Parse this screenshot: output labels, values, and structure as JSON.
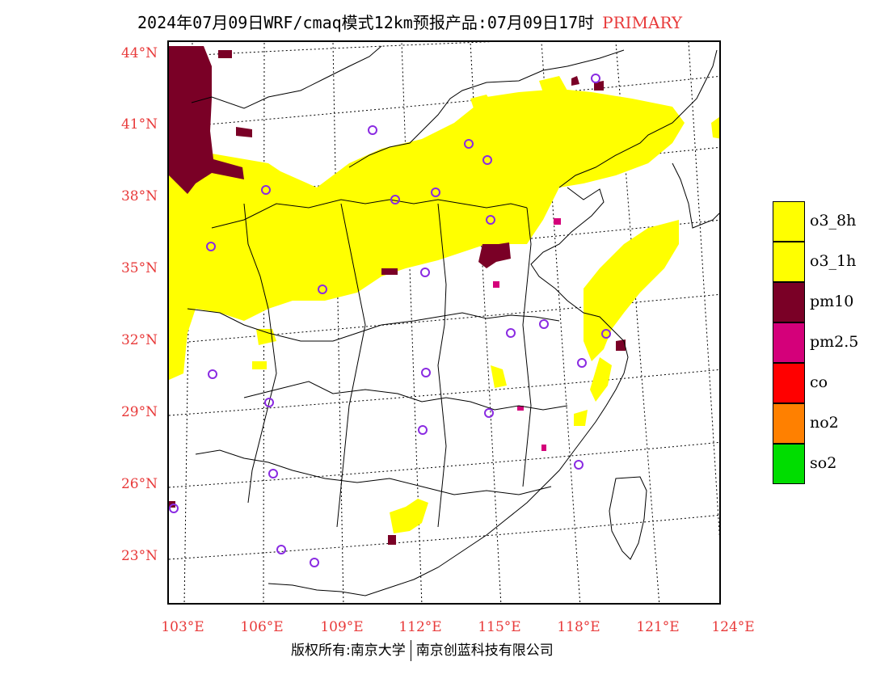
{
  "title": {
    "main": "2024年07月09日WRF/cmaq模式12km预报产品:07月09日17时",
    "tag": "PRIMARY"
  },
  "axes": {
    "lat_labels": [
      "44°N",
      "41°N",
      "38°N",
      "35°N",
      "32°N",
      "29°N",
      "26°N",
      "23°N"
    ],
    "lon_labels": [
      "103°E",
      "106°E",
      "109°E",
      "112°E",
      "115°E",
      "118°E",
      "121°E",
      "124°E"
    ]
  },
  "legend": [
    {
      "label": "o3_8h",
      "color": "#ffff00"
    },
    {
      "label": "o3_1h",
      "color": "#ffff00"
    },
    {
      "label": "pm10",
      "color": "#7a0026"
    },
    {
      "label": "pm2.5",
      "color": "#d4007a"
    },
    {
      "label": "co",
      "color": "#ff0000"
    },
    {
      "label": "no2",
      "color": "#ff8000"
    },
    {
      "label": "so2",
      "color": "#00dd00"
    }
  ],
  "copyright": {
    "left": "版权所有:南京大学",
    "right": "南京创蓝科技有限公司"
  },
  "map_icons": {
    "station_marker": "circle-icon",
    "station_color": "#8a2be2"
  }
}
